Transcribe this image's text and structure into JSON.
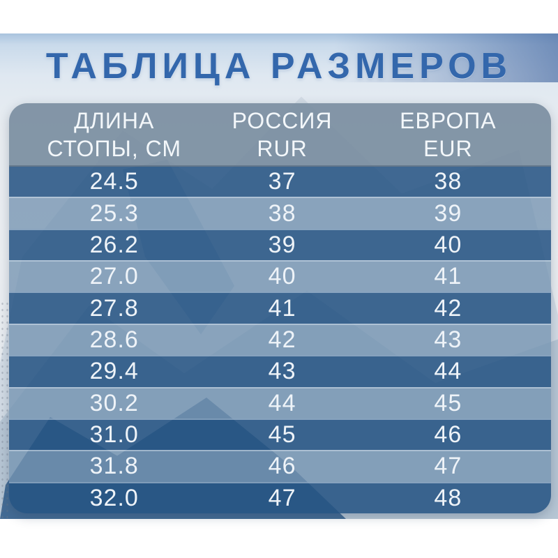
{
  "page": {
    "title": "ТАБЛИЦА РАЗМЕРОВ"
  },
  "table": {
    "columns": [
      {
        "line1": "ДЛИНА",
        "line2": "СТОПЫ, СМ"
      },
      {
        "line1": "РОССИЯ",
        "line2": "RUR"
      },
      {
        "line1": "ЕВРОПА",
        "line2": "EUR"
      }
    ],
    "rows": [
      [
        "24.5",
        "37",
        "38"
      ],
      [
        "25.3",
        "38",
        "39"
      ],
      [
        "26.2",
        "39",
        "40"
      ],
      [
        "27.0",
        "40",
        "41"
      ],
      [
        "27.8",
        "41",
        "42"
      ],
      [
        "28.6",
        "42",
        "43"
      ],
      [
        "29.4",
        "43",
        "44"
      ],
      [
        "30.2",
        "44",
        "45"
      ],
      [
        "31.0",
        "45",
        "46"
      ],
      [
        "31.8",
        "46",
        "47"
      ],
      [
        "32.0",
        "47",
        "48"
      ]
    ]
  },
  "colors": {
    "title_text": "#3367ac",
    "header_bg": "#7e93a5",
    "row_dark": "#3e6791",
    "row_light": "#8da6be",
    "row_text": "#eef3f8",
    "mountain_dark": "#2f5b88"
  },
  "chart_data": {
    "type": "table",
    "title": "ТАБЛИЦА РАЗМЕРОВ",
    "columns": [
      "ДЛИНА СТОПЫ, СМ",
      "РОССИЯ RUR",
      "ЕВРОПА EUR"
    ],
    "rows": [
      [
        24.5,
        37,
        38
      ],
      [
        25.3,
        38,
        39
      ],
      [
        26.2,
        39,
        40
      ],
      [
        27.0,
        40,
        41
      ],
      [
        27.8,
        41,
        42
      ],
      [
        28.6,
        42,
        43
      ],
      [
        29.4,
        43,
        44
      ],
      [
        30.2,
        44,
        45
      ],
      [
        31.0,
        45,
        46
      ],
      [
        31.8,
        46,
        47
      ],
      [
        32.0,
        47,
        48
      ]
    ]
  }
}
